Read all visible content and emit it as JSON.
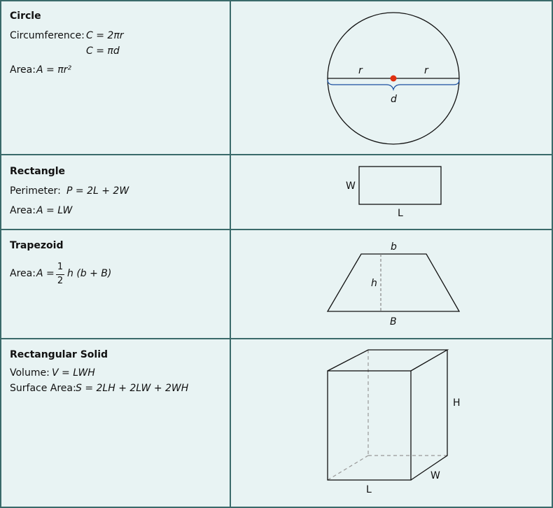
{
  "circle": {
    "title": "Circle",
    "circumference_label": "Circumference:",
    "circumference_formula_1": "C = 2πr",
    "circumference_formula_2": "C = πd",
    "area_label": "Area:",
    "area_formula": "A = πr²",
    "label_r": "r",
    "label_d": "d"
  },
  "rectangle": {
    "title": "Rectangle",
    "perimeter_label": "Perimeter:",
    "perimeter_formula": "P = 2L + 2W",
    "area_label": "Area:",
    "area_formula": "A = LW",
    "label_w": "W",
    "label_l": "L"
  },
  "trapezoid": {
    "title": "Trapezoid",
    "area_label": "Area:",
    "area_lhs": "A =",
    "frac_num": "1",
    "frac_den": "2",
    "area_rhs": "h (b + B)",
    "label_b": "b",
    "label_h": "h",
    "label_B": "B"
  },
  "solid": {
    "title": "Rectangular Solid",
    "volume_label": "Volume:",
    "volume_formula": "V = LWH",
    "surface_label": "Surface Area:",
    "surface_formula": "S = 2LH + 2LW + 2WH",
    "label_h": "H",
    "label_l": "L",
    "label_w": "W"
  },
  "colors": {
    "background": "#e8f3f3",
    "border": "#3a6a6a",
    "center_dot": "#e03010",
    "brace": "#1a4fa0"
  }
}
